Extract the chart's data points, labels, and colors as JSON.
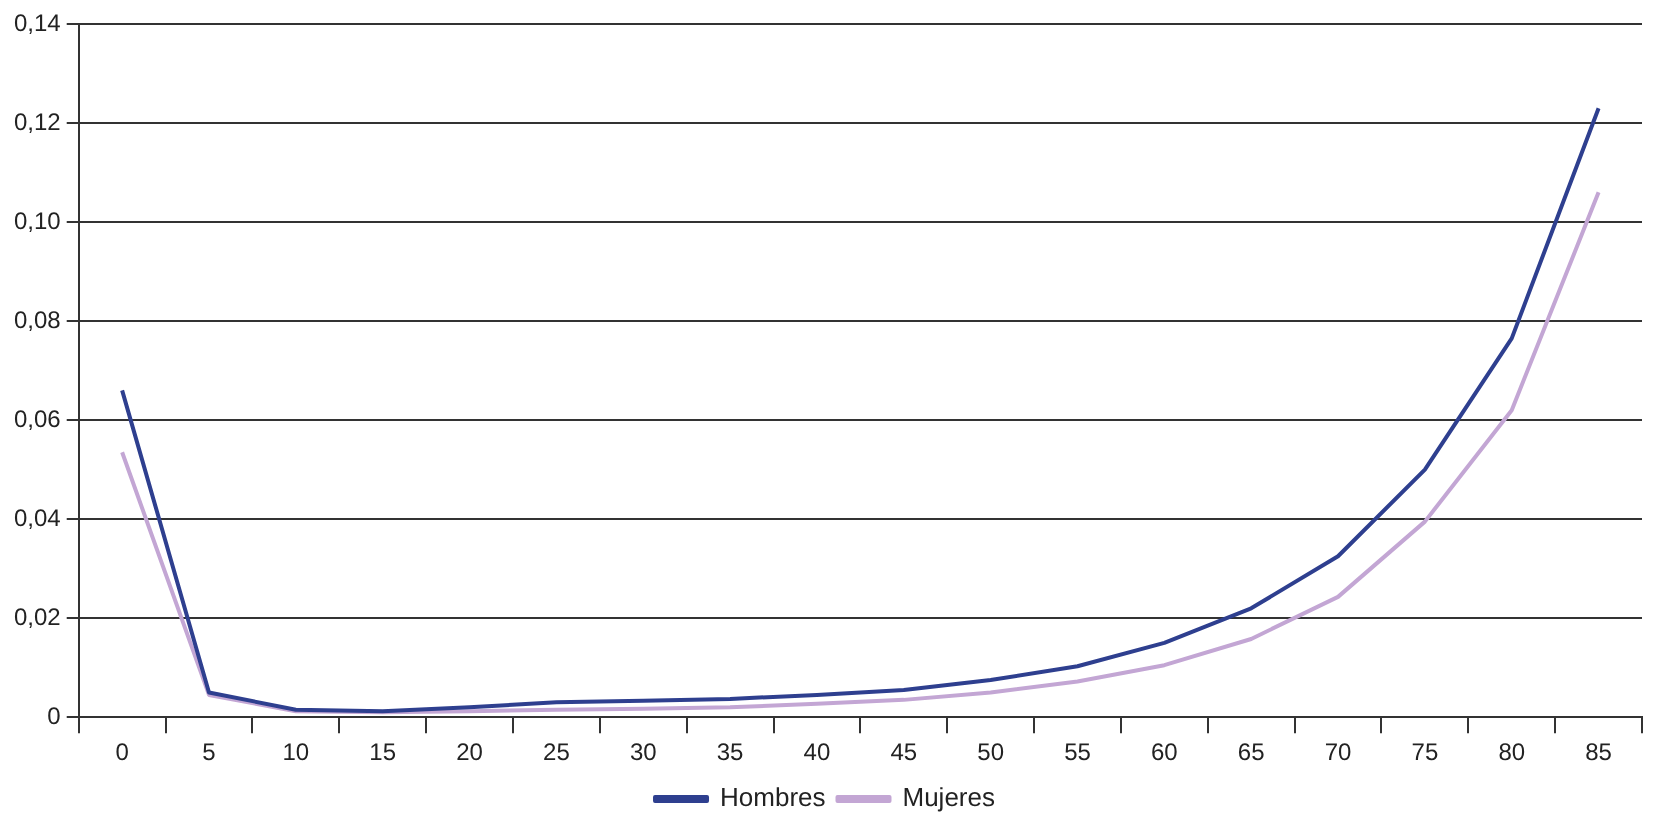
{
  "chart_data": {
    "type": "line",
    "categories": [
      "0",
      "5",
      "10",
      "15",
      "20",
      "25",
      "30",
      "35",
      "40",
      "45",
      "50",
      "55",
      "60",
      "65",
      "70",
      "75",
      "80",
      "85"
    ],
    "series": [
      {
        "name": "Hombres",
        "color": "#2e3f8f",
        "values": [
          0.066,
          0.005,
          0.0015,
          0.0012,
          0.002,
          0.003,
          0.0033,
          0.0037,
          0.0045,
          0.0055,
          0.0075,
          0.0103,
          0.015,
          0.022,
          0.0325,
          0.05,
          0.0765,
          0.123
        ]
      },
      {
        "name": "Mujeres",
        "color": "#c3a6d4",
        "values": [
          0.0535,
          0.0045,
          0.0012,
          0.001,
          0.0012,
          0.0015,
          0.0017,
          0.002,
          0.0027,
          0.0035,
          0.005,
          0.0072,
          0.0105,
          0.0158,
          0.0243,
          0.0395,
          0.062,
          0.106
        ]
      }
    ],
    "ylim": [
      0,
      0.14
    ],
    "yticks": [
      0,
      {
        "value": 0.02,
        "label": "0,02"
      },
      {
        "value": 0.04,
        "label": "0,04"
      },
      {
        "value": 0.06,
        "label": "0,06"
      },
      {
        "value": 0.08,
        "label": "0,08"
      },
      {
        "value": 0.1,
        "label": "0,10"
      },
      {
        "value": 0.12,
        "label": "0,12"
      },
      {
        "value": 0.14,
        "label": "0,14"
      }
    ],
    "grid": "y",
    "legend": "bottom",
    "marker": "none",
    "line_style": "solid"
  }
}
